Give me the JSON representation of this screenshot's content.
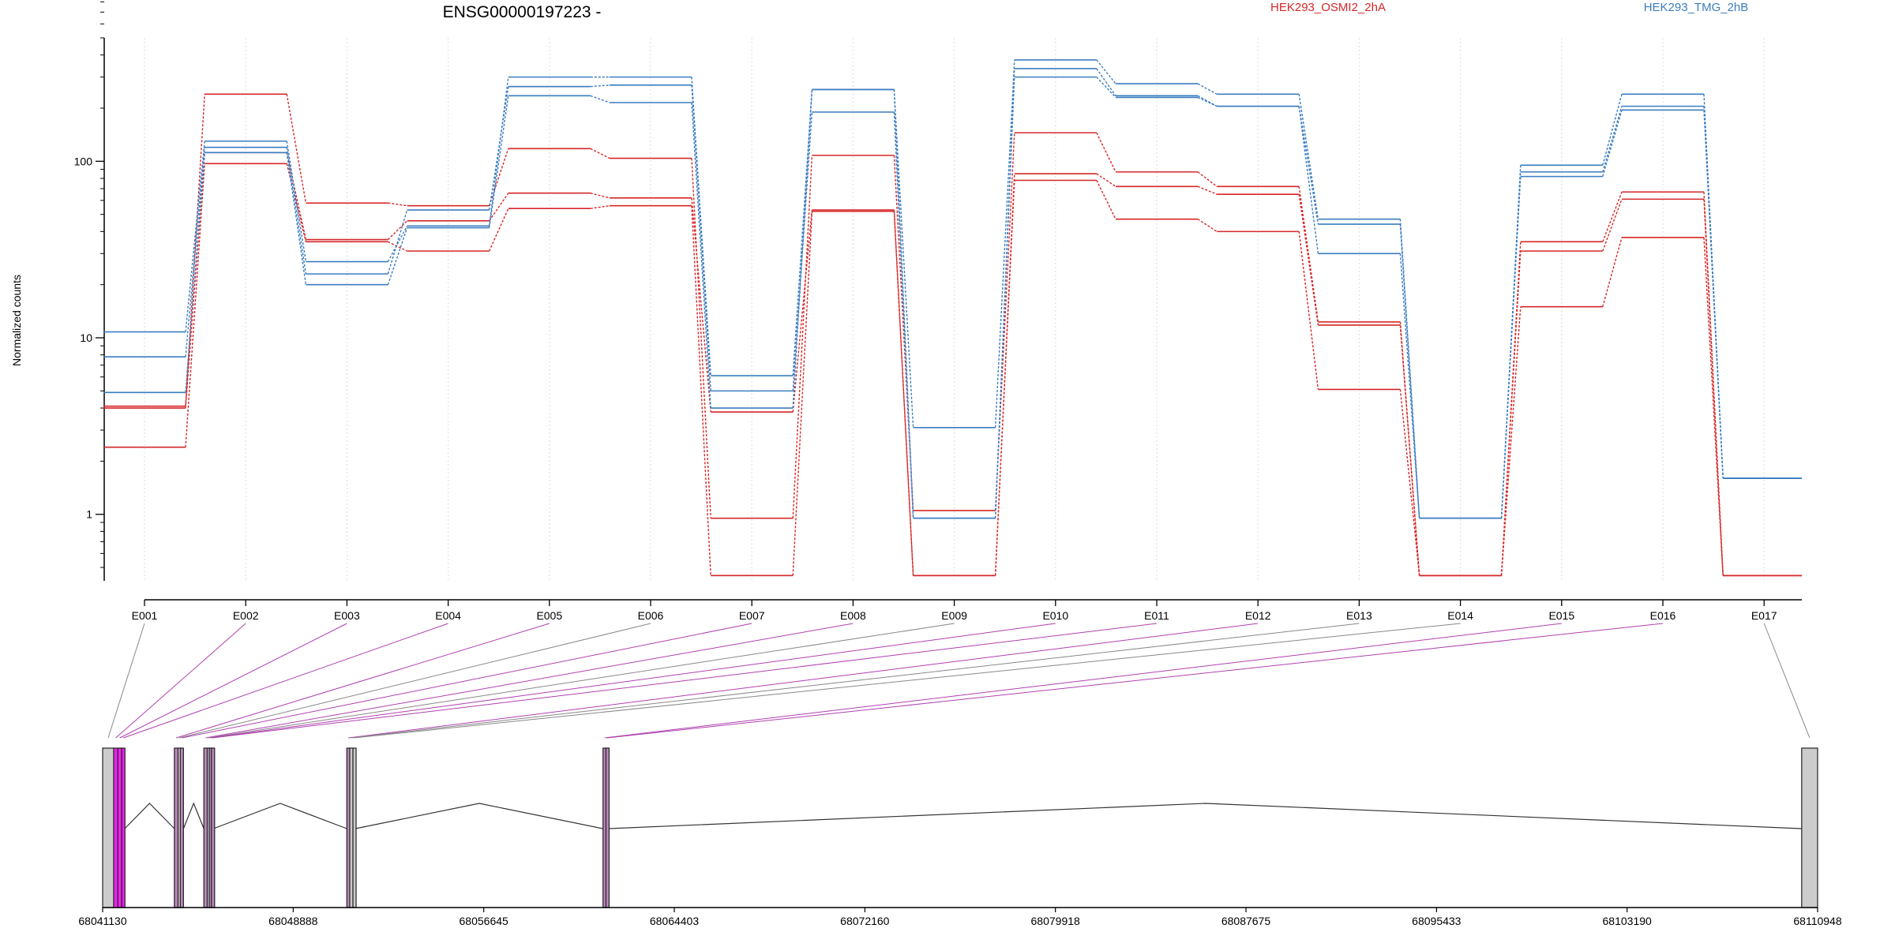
{
  "chart_data": {
    "type": "line",
    "title": "ENSG00000197223 -",
    "ylabel": "Normalized counts",
    "xlabel": "",
    "yscale": "log",
    "ylim": [
      0.42,
      500
    ],
    "yticks": [
      "1",
      "10",
      "100"
    ],
    "legend": [
      {
        "name": "HEK293_OSMI2_2hA",
        "color": "#d62728"
      },
      {
        "name": "HEK293_TMG_2hB",
        "color": "#3b7dbf"
      }
    ],
    "legend_position": "top",
    "categories": [
      "E001",
      "E002",
      "E003",
      "E004",
      "E005",
      "E006",
      "E007",
      "E008",
      "E009",
      "E010",
      "E011",
      "E012",
      "E013",
      "E014",
      "E015",
      "E016",
      "E017"
    ],
    "series": [
      {
        "group": "HEK293_OSMI2_2hA",
        "color": "#d62728",
        "values": [
          4.1,
          240,
          58,
          56,
          118,
          104,
          0.95,
          108,
          1.05,
          145,
          87,
          72,
          12.3,
          0.45,
          35,
          67,
          0.45
        ]
      },
      {
        "group": "HEK293_OSMI2_2hA",
        "color": "#d62728",
        "values": [
          4.0,
          112,
          36,
          46,
          66,
          62,
          3.8,
          53,
          0.45,
          85,
          72,
          65,
          11.8,
          0.45,
          31,
          61,
          0.45
        ]
      },
      {
        "group": "HEK293_OSMI2_2hA",
        "color": "#d62728",
        "values": [
          2.4,
          97,
          35,
          31,
          54,
          56,
          0.45,
          52,
          0.45,
          78,
          47,
          40,
          5.1,
          0.45,
          15,
          37,
          0.45
        ]
      },
      {
        "group": "HEK293_TMG_2hB",
        "color": "#3b7dbf",
        "values": [
          10.8,
          130,
          27,
          43,
          300,
          300,
          6.1,
          255,
          3.1,
          375,
          275,
          240,
          47,
          0.95,
          95,
          240,
          1.6
        ]
      },
      {
        "group": "HEK293_TMG_2hB",
        "color": "#3b7dbf",
        "values": [
          7.8,
          120,
          23,
          53,
          265,
          270,
          5.0,
          190,
          0.95,
          335,
          235,
          205,
          44,
          0.95,
          87,
          205,
          1.6
        ]
      },
      {
        "group": "HEK293_TMG_2hB",
        "color": "#3b7dbf",
        "values": [
          4.9,
          112,
          20,
          42,
          235,
          215,
          4.0,
          255,
          0.95,
          300,
          230,
          205,
          30,
          0.95,
          82,
          195,
          1.6
        ]
      }
    ],
    "gene_model": {
      "coordinate_ticks": [
        "68041130",
        "68048888",
        "68056645",
        "68064403",
        "68072160",
        "68079918",
        "68087675",
        "68095433",
        "68103190",
        "68110948"
      ],
      "exons": [
        {
          "id": "E001",
          "start": 68041130,
          "end": 68041580,
          "color": "#cccccc"
        },
        {
          "id": "E002",
          "start": 68041580,
          "end": 68041750,
          "color": "#ee22ee"
        },
        {
          "id": "E003",
          "start": 68041750,
          "end": 68041910,
          "color": "#ee22ee"
        },
        {
          "id": "E004",
          "start": 68041910,
          "end": 68042030,
          "color": "#ee22ee"
        },
        {
          "id": "E005",
          "start": 68044050,
          "end": 68044200,
          "color": "#bb88bb"
        },
        {
          "id": "E006",
          "start": 68044200,
          "end": 68044290,
          "color": "#cccccc"
        },
        {
          "id": "E007",
          "start": 68044290,
          "end": 68044420,
          "color": "#bb88bb"
        },
        {
          "id": "E008",
          "start": 68045250,
          "end": 68045390,
          "color": "#bb88bb"
        },
        {
          "id": "E009",
          "start": 68045390,
          "end": 68045470,
          "color": "#cccccc"
        },
        {
          "id": "E010",
          "start": 68045470,
          "end": 68045560,
          "color": "#bb88bb"
        },
        {
          "id": "E011",
          "start": 68045560,
          "end": 68045640,
          "color": "#bb88bb"
        },
        {
          "id": "E012",
          "start": 68051070,
          "end": 68051190,
          "color": "#bb88bb"
        },
        {
          "id": "E013",
          "start": 68051190,
          "end": 68051320,
          "color": "#cccccc"
        },
        {
          "id": "E014",
          "start": 68051320,
          "end": 68051420,
          "color": "#cccccc"
        },
        {
          "id": "E015",
          "start": 68061500,
          "end": 68061620,
          "color": "#bb88bb"
        },
        {
          "id": "E016",
          "start": 68061620,
          "end": 68061720,
          "color": "#bb88bb"
        },
        {
          "id": "E017",
          "start": 68110300,
          "end": 68110948,
          "color": "#cccccc"
        }
      ]
    }
  }
}
